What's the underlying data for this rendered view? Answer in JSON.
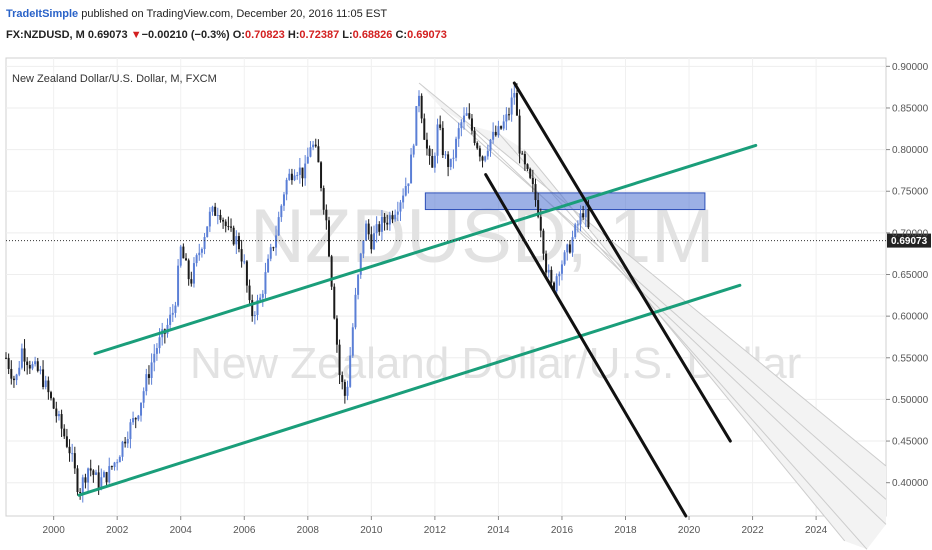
{
  "header": {
    "publisher": "TradeItSimple",
    "published_line": "published on TradingView.com, December 20, 2016 11:05 EST",
    "symbol": "FX:NZDUSD, M",
    "last": "0.69073",
    "change_arrow": "▼",
    "change": "−0.00210 (−0.3%)",
    "open_label": "O:",
    "open": "0.70823",
    "high_label": "H:",
    "high": "0.72387",
    "low_label": "L:",
    "low": "0.68826",
    "close_label": "C:",
    "close": "0.69073"
  },
  "chart_data": {
    "type": "candlestick",
    "instrument_label": "New Zealand Dollar/U.S. Dollar, M, FXCM",
    "watermark_symbol": "NZDUSD, 1M",
    "watermark_name": "New Zealand Dollar/U.S. Dollar",
    "x_ticks": [
      "2000",
      "2002",
      "2004",
      "2006",
      "2008",
      "2010",
      "2012",
      "2014",
      "2016",
      "2018",
      "2020",
      "2022",
      "2024",
      "202"
    ],
    "y_ticks": [
      "0.90000",
      "0.85000",
      "0.80000",
      "0.75000",
      "0.70000",
      "0.65000",
      "0.60000",
      "0.55000",
      "0.50000",
      "0.45000",
      "0.40000"
    ],
    "ylim": [
      0.36,
      0.91
    ],
    "xlim": [
      1998.5,
      2026.2
    ],
    "last_price_label": "0.69073",
    "last_price": 0.69073,
    "price_path": [
      [
        1998.5,
        0.55
      ],
      [
        1998.8,
        0.52
      ],
      [
        1999.0,
        0.56
      ],
      [
        1999.3,
        0.54
      ],
      [
        1999.6,
        0.53
      ],
      [
        1999.9,
        0.5
      ],
      [
        2000.2,
        0.47
      ],
      [
        2000.5,
        0.44
      ],
      [
        2000.8,
        0.39
      ],
      [
        2001.1,
        0.42
      ],
      [
        2001.4,
        0.4
      ],
      [
        2001.7,
        0.41
      ],
      [
        2002.0,
        0.43
      ],
      [
        2002.3,
        0.46
      ],
      [
        2002.6,
        0.48
      ],
      [
        2002.9,
        0.52
      ],
      [
        2003.2,
        0.56
      ],
      [
        2003.5,
        0.58
      ],
      [
        2003.8,
        0.61
      ],
      [
        2004.0,
        0.68
      ],
      [
        2004.3,
        0.64
      ],
      [
        2004.6,
        0.68
      ],
      [
        2004.9,
        0.72
      ],
      [
        2005.2,
        0.73
      ],
      [
        2005.5,
        0.7
      ],
      [
        2005.8,
        0.69
      ],
      [
        2006.0,
        0.66
      ],
      [
        2006.2,
        0.6
      ],
      [
        2006.5,
        0.62
      ],
      [
        2006.8,
        0.67
      ],
      [
        2007.0,
        0.7
      ],
      [
        2007.3,
        0.76
      ],
      [
        2007.6,
        0.78
      ],
      [
        2007.9,
        0.77
      ],
      [
        2008.1,
        0.81
      ],
      [
        2008.3,
        0.79
      ],
      [
        2008.6,
        0.71
      ],
      [
        2008.8,
        0.62
      ],
      [
        2009.0,
        0.53
      ],
      [
        2009.2,
        0.5
      ],
      [
        2009.5,
        0.62
      ],
      [
        2009.8,
        0.71
      ],
      [
        2010.0,
        0.69
      ],
      [
        2010.3,
        0.71
      ],
      [
        2010.6,
        0.72
      ],
      [
        2010.9,
        0.74
      ],
      [
        2011.2,
        0.77
      ],
      [
        2011.5,
        0.87
      ],
      [
        2011.7,
        0.81
      ],
      [
        2011.9,
        0.77
      ],
      [
        2012.1,
        0.83
      ],
      [
        2012.3,
        0.79
      ],
      [
        2012.5,
        0.78
      ],
      [
        2012.8,
        0.83
      ],
      [
        2013.0,
        0.84
      ],
      [
        2013.3,
        0.81
      ],
      [
        2013.5,
        0.79
      ],
      [
        2013.7,
        0.81
      ],
      [
        2014.0,
        0.82
      ],
      [
        2014.3,
        0.84
      ],
      [
        2014.5,
        0.87
      ],
      [
        2014.7,
        0.79
      ],
      [
        2014.9,
        0.77
      ],
      [
        2015.1,
        0.75
      ],
      [
        2015.3,
        0.72
      ],
      [
        2015.5,
        0.66
      ],
      [
        2015.7,
        0.63
      ],
      [
        2015.9,
        0.66
      ],
      [
        2016.1,
        0.67
      ],
      [
        2016.3,
        0.69
      ],
      [
        2016.5,
        0.71
      ],
      [
        2016.7,
        0.73
      ],
      [
        2016.9,
        0.69
      ]
    ],
    "trendlines": [
      {
        "name": "upper-green-channel",
        "color": "#1a9e7a",
        "from": [
          2001.3,
          0.555
        ],
        "to": [
          2022.1,
          0.805
        ]
      },
      {
        "name": "lower-green-channel",
        "color": "#1a9e7a",
        "from": [
          2000.8,
          0.385
        ],
        "to": [
          2021.6,
          0.637
        ]
      },
      {
        "name": "black-line-upper",
        "color": "#111111",
        "from": [
          2014.5,
          0.88
        ],
        "to": [
          2021.3,
          0.45
        ]
      },
      {
        "name": "black-line-lower",
        "color": "#111111",
        "from": [
          2013.6,
          0.77
        ],
        "to": [
          2019.9,
          0.36
        ]
      }
    ],
    "resistance_zone": {
      "x": [
        2011.7,
        2020.5
      ],
      "y": [
        0.728,
        0.748
      ],
      "color": "#4a6fd0"
    },
    "pitchfork_fan": {
      "color": "#cccccc",
      "lines": [
        {
          "from": [
            2011.5,
            0.88
          ],
          "to": [
            2026.2,
            0.42
          ]
        },
        {
          "from": [
            2012.2,
            0.85
          ],
          "to": [
            2026.2,
            0.38
          ]
        },
        {
          "from": [
            2013.0,
            0.83
          ],
          "to": [
            2026.2,
            0.35
          ]
        },
        {
          "from": [
            2014.0,
            0.82
          ],
          "to": [
            2025.6,
            0.32
          ]
        },
        {
          "from": [
            2014.8,
            0.8
          ],
          "to": [
            2024.9,
            0.33
          ]
        }
      ]
    }
  }
}
